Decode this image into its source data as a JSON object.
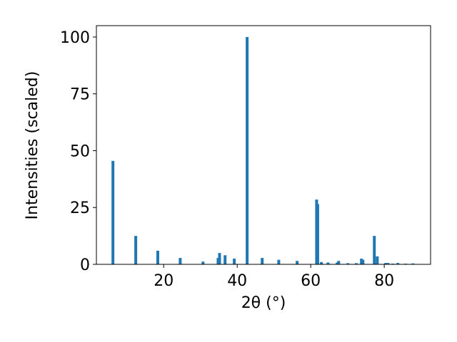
{
  "chart_data": {
    "type": "bar",
    "xlabel": "2θ (°)",
    "ylabel": "Intensities (scaled)",
    "color": "#1f77b4",
    "x": [
      6.2,
      12.4,
      18.4,
      24.5,
      30.7,
      34.8,
      35.2,
      36.7,
      39.2,
      42.7,
      46.8,
      51.3,
      56.3,
      61.6,
      61.9,
      62.9,
      64.7,
      67.2,
      67.6,
      70.1,
      72.4,
      73.8,
      74.2,
      77.3,
      78.1,
      80.4,
      81.0,
      82.3,
      83.7,
      85.8,
      87.8
    ],
    "values": [
      45.5,
      12.5,
      6,
      2.8,
      1.2,
      2.8,
      5,
      4,
      2.5,
      100,
      2.8,
      2,
      1.5,
      28.5,
      26.5,
      1,
      0.8,
      0.8,
      1.5,
      0.5,
      0.5,
      2.5,
      2,
      12.5,
      3.5,
      0.6,
      0.6,
      0.3,
      0.6,
      0.3,
      0.4
    ],
    "xlim": [
      1.7,
      92.6
    ],
    "xticks": [
      20,
      40,
      60,
      80
    ],
    "ylim": [
      0,
      105
    ],
    "yticks": [
      0,
      25,
      50,
      75,
      100
    ]
  }
}
